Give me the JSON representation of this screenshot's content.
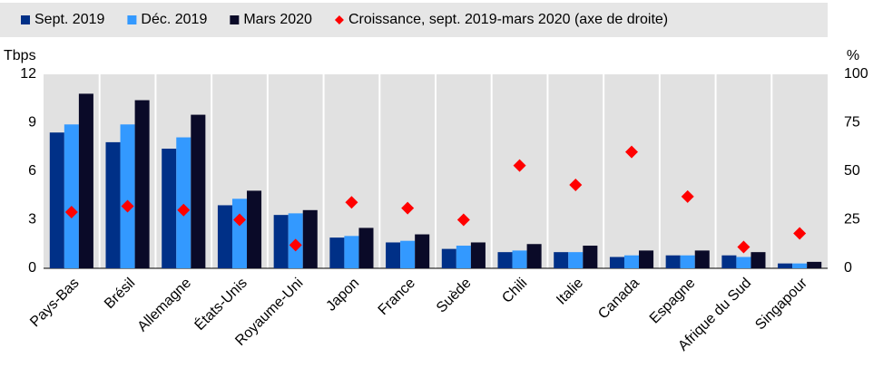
{
  "chart_data": {
    "type": "bar",
    "y_label": "Tbps",
    "y2_label": "%",
    "categories": [
      "Pays-Bas",
      "Brésil",
      "Allemagne",
      "États-Unis",
      "Royaume-Uni",
      "Japon",
      "France",
      "Suède",
      "Chili",
      "Italie",
      "Canada",
      "Espagne",
      "Afrique du Sud",
      "Singapour"
    ],
    "series": [
      {
        "name": "Sept. 2019",
        "color": "#003087",
        "values": [
          8.4,
          7.8,
          7.4,
          3.9,
          3.3,
          1.9,
          1.6,
          1.2,
          1.0,
          1.0,
          0.7,
          0.8,
          0.8,
          0.3
        ]
      },
      {
        "name": "Déc. 2019",
        "color": "#3399ff",
        "values": [
          8.9,
          8.9,
          8.1,
          4.3,
          3.4,
          2.0,
          1.7,
          1.4,
          1.1,
          1.0,
          0.8,
          0.8,
          0.7,
          0.3
        ]
      },
      {
        "name": "Mars 2020",
        "color": "#0a0a28",
        "values": [
          10.8,
          10.4,
          9.5,
          4.8,
          3.6,
          2.5,
          2.1,
          1.6,
          1.5,
          1.4,
          1.1,
          1.1,
          1.0,
          0.4
        ]
      },
      {
        "name": "Croissance, sept. 2019-mars 2020 (axe de droite)",
        "color": "#ff0000",
        "axis": "y2",
        "marker": "diamond",
        "values": [
          29,
          32,
          30,
          25,
          12,
          34,
          31,
          25,
          53,
          43,
          60,
          37,
          11,
          18
        ]
      }
    ],
    "ylim": [
      0,
      12
    ],
    "yticks": [
      0,
      3,
      6,
      9,
      12
    ],
    "y2lim": [
      0,
      100
    ],
    "y2ticks": [
      0,
      25,
      50,
      75,
      100
    ]
  }
}
